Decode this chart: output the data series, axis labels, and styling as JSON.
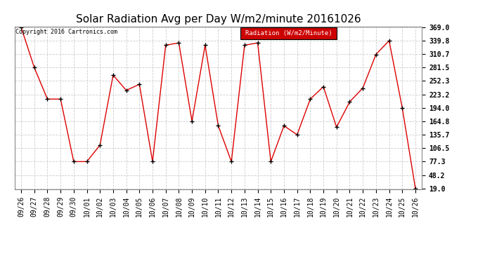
{
  "title": "Solar Radiation Avg per Day W/m2/minute 20161026",
  "copyright_text": "Copyright 2016 Cartronics.com",
  "legend_label": "Radiation (W/m2/Minute)",
  "legend_bg": "#cc0000",
  "legend_text_color": "#ffffff",
  "x_labels": [
    "09/26",
    "09/27",
    "09/28",
    "09/29",
    "09/30",
    "10/01",
    "10/02",
    "10/03",
    "10/04",
    "10/05",
    "10/06",
    "10/07",
    "10/08",
    "10/09",
    "10/10",
    "10/11",
    "10/12",
    "10/13",
    "10/14",
    "10/15",
    "10/16",
    "10/17",
    "10/18",
    "10/19",
    "10/20",
    "10/21",
    "10/22",
    "10/23",
    "10/24",
    "10/25",
    "10/26"
  ],
  "y_values": [
    369.0,
    281.5,
    213.0,
    213.0,
    77.3,
    77.3,
    113.0,
    265.0,
    232.0,
    245.0,
    77.3,
    330.0,
    335.0,
    165.0,
    330.0,
    155.0,
    77.3,
    330.0,
    335.0,
    77.3,
    155.0,
    135.7,
    213.0,
    240.0,
    152.0,
    207.0,
    237.0,
    310.0,
    339.8,
    194.0,
    19.0
  ],
  "line_color": "#dd0000",
  "marker_color": "#000000",
  "background_color": "#ffffff",
  "grid_color": "#cccccc",
  "y_ticks": [
    19.0,
    48.2,
    77.3,
    106.5,
    135.7,
    164.8,
    194.0,
    223.2,
    252.3,
    281.5,
    310.7,
    339.8,
    369.0
  ],
  "ylim_min": 19.0,
  "ylim_max": 369.0,
  "title_fontsize": 11,
  "axis_fontsize": 7,
  "tick_fontsize": 7,
  "figwidth": 6.9,
  "figheight": 3.75,
  "dpi": 100
}
